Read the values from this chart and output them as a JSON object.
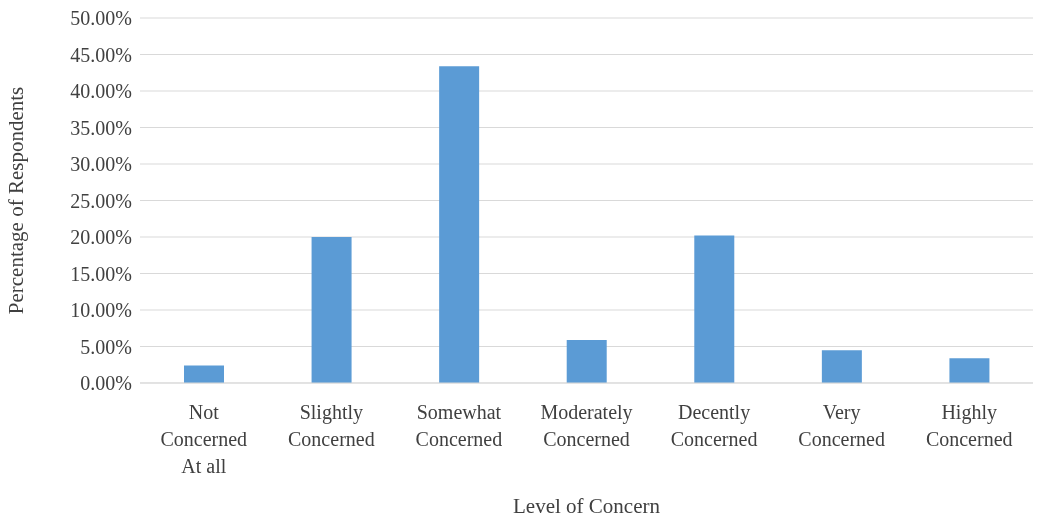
{
  "chart_data": {
    "type": "bar",
    "xlabel": "Level of Concern",
    "ylabel": "Percentage of Respondents",
    "categories": [
      "Not Concerned At all",
      "Slightly Concerned",
      "Somewhat Concerned",
      "Moderately Concerned",
      "Decently Concerned",
      "Very Concerned",
      "Highly Concerned"
    ],
    "values": [
      2.4,
      20.0,
      43.4,
      5.9,
      20.2,
      4.5,
      3.4
    ],
    "color": "#5b9bd5",
    "ylim": [
      0,
      50
    ],
    "yticks": [
      {
        "value": 0,
        "label": "0.00%"
      },
      {
        "value": 5,
        "label": "5.00%"
      },
      {
        "value": 10,
        "label": "10.00%"
      },
      {
        "value": 15,
        "label": "15.00%"
      },
      {
        "value": 20,
        "label": "20.00%"
      },
      {
        "value": 25,
        "label": "25.00%"
      },
      {
        "value": 30,
        "label": "30.00%"
      },
      {
        "value": 35,
        "label": "35.00%"
      },
      {
        "value": 40,
        "label": "40.00%"
      },
      {
        "value": 45,
        "label": "45.00%"
      },
      {
        "value": 50,
        "label": "50.00%"
      }
    ],
    "grid": "y"
  }
}
